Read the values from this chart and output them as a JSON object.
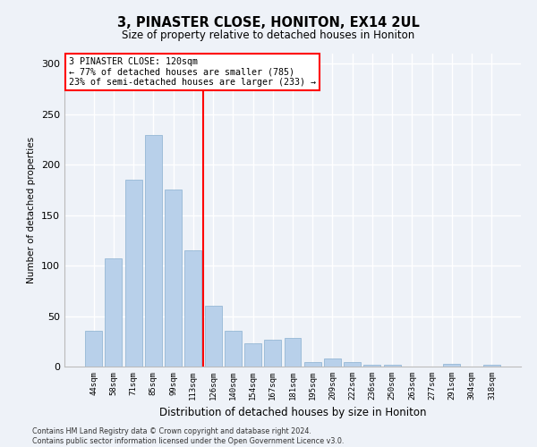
{
  "title": "3, PINASTER CLOSE, HONITON, EX14 2UL",
  "subtitle": "Size of property relative to detached houses in Honiton",
  "xlabel": "Distribution of detached houses by size in Honiton",
  "ylabel": "Number of detached properties",
  "categories": [
    "44sqm",
    "58sqm",
    "71sqm",
    "85sqm",
    "99sqm",
    "113sqm",
    "126sqm",
    "140sqm",
    "154sqm",
    "167sqm",
    "181sqm",
    "195sqm",
    "209sqm",
    "222sqm",
    "236sqm",
    "250sqm",
    "263sqm",
    "277sqm",
    "291sqm",
    "304sqm",
    "318sqm"
  ],
  "values": [
    35,
    107,
    185,
    229,
    175,
    115,
    60,
    35,
    23,
    27,
    28,
    4,
    8,
    4,
    2,
    2,
    0,
    0,
    3,
    0,
    2
  ],
  "bar_color": "#b8d0ea",
  "bar_edge_color": "#8ab0d0",
  "vline_x": 5.5,
  "vline_color": "red",
  "annotation_lines": [
    "3 PINASTER CLOSE: 120sqm",
    "← 77% of detached houses are smaller (785)",
    "23% of semi-detached houses are larger (233) →"
  ],
  "annotation_box_color": "white",
  "annotation_box_edge": "red",
  "ylim": [
    0,
    310
  ],
  "yticks": [
    0,
    50,
    100,
    150,
    200,
    250,
    300
  ],
  "footer": "Contains HM Land Registry data © Crown copyright and database right 2024.\nContains public sector information licensed under the Open Government Licence v3.0.",
  "bg_color": "#eef2f8",
  "plot_bg_color": "#eef2f8",
  "grid_color": "white"
}
